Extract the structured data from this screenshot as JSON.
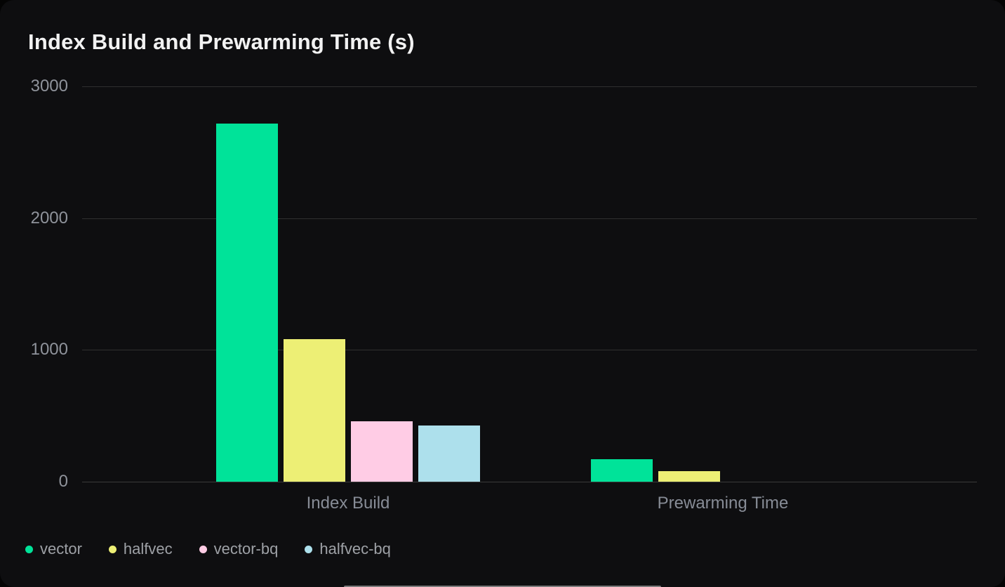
{
  "page": {
    "background": "#040404",
    "card_background": "#0E0E10"
  },
  "chart_data": {
    "type": "bar",
    "title": "Index Build and Prewarming Time (s)",
    "categories": [
      "Index Build",
      "Prewarming Time"
    ],
    "series": [
      {
        "name": "vector",
        "color": "#00E399",
        "values": [
          2720,
          170
        ]
      },
      {
        "name": "halfvec",
        "color": "#EDEF75",
        "values": [
          1080,
          80
        ]
      },
      {
        "name": "vector-bq",
        "color": "#FFCCE5",
        "values": [
          460,
          0
        ]
      },
      {
        "name": "halfvec-bq",
        "color": "#ADE0EC",
        "values": [
          425,
          0
        ]
      }
    ],
    "ylim": [
      0,
      3000
    ],
    "yticks": [
      3000,
      2000,
      1000,
      0
    ],
    "grid": true,
    "legend_position": "bottom-left",
    "legend_entries": [
      "vector",
      "halfvec",
      "vector-bq",
      "halfvec-bq"
    ]
  },
  "colors": {
    "title_text": "#F2F2F2",
    "axis_text": "#8F939B",
    "gridline": "#303030",
    "legend_text": "#9EA1A6"
  }
}
